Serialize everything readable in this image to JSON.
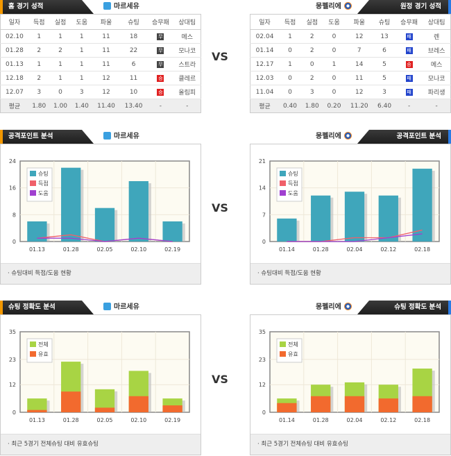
{
  "vs_label": "VS",
  "home": {
    "title": "홈 경기 성적",
    "team": "마르세유",
    "columns": [
      "일자",
      "득점",
      "실점",
      "도움",
      "파울",
      "슈팅",
      "승무패",
      "상대팀"
    ],
    "rows": [
      [
        "02.10",
        "1",
        "1",
        "1",
        "11",
        "18",
        "무",
        "메스"
      ],
      [
        "01.28",
        "2",
        "2",
        "1",
        "11",
        "22",
        "무",
        "모나코"
      ],
      [
        "01.13",
        "1",
        "1",
        "1",
        "11",
        "6",
        "무",
        "스트라"
      ],
      [
        "12.18",
        "2",
        "1",
        "1",
        "12",
        "11",
        "승",
        "클레르"
      ],
      [
        "12.07",
        "3",
        "0",
        "3",
        "12",
        "10",
        "승",
        "올림피"
      ]
    ],
    "avg": [
      "평균",
      "1.80",
      "1.00",
      "1.40",
      "11.40",
      "13.40",
      "-",
      "-"
    ]
  },
  "away": {
    "title": "원정 경기 성적",
    "team": "몽펠리에",
    "columns": [
      "일자",
      "득점",
      "실점",
      "도움",
      "파울",
      "슈팅",
      "승무패",
      "상대팀"
    ],
    "rows": [
      [
        "02.04",
        "1",
        "2",
        "0",
        "12",
        "13",
        "패",
        "렌"
      ],
      [
        "01.14",
        "0",
        "2",
        "0",
        "7",
        "6",
        "패",
        "브레스"
      ],
      [
        "12.17",
        "1",
        "0",
        "1",
        "14",
        "5",
        "승",
        "메스"
      ],
      [
        "12.03",
        "0",
        "2",
        "0",
        "11",
        "5",
        "패",
        "모나코"
      ],
      [
        "11.04",
        "0",
        "3",
        "0",
        "12",
        "3",
        "패",
        "파리생"
      ]
    ],
    "avg": [
      "평균",
      "0.40",
      "1.80",
      "0.20",
      "11.20",
      "6.40",
      "-",
      "-"
    ]
  },
  "result_colors": {
    "승": "#e02020",
    "무": "#444444",
    "패": "#2244cc"
  },
  "sections": [
    {
      "title": "공격포인트 분석",
      "home_team": "마르세유",
      "away_team": "몽펠리에",
      "footer": "슈팅대비 득점/도움 현황"
    },
    {
      "title": "슈팅 정확도 분석",
      "home_team": "마르세유",
      "away_team": "몽펠리에",
      "footer": "최근 5경기 전체슈팅 대비 유효슈팅"
    }
  ],
  "chart_data": [
    {
      "type": "bar",
      "team": "마르세유",
      "categories": [
        "01.13",
        "01.28",
        "02.05",
        "02.10",
        "02.19"
      ],
      "ylim": [
        0,
        24
      ],
      "yticks": [
        0,
        8,
        16,
        24
      ],
      "legend": "top-left",
      "series": [
        {
          "name": "슈팅",
          "kind": "bar",
          "color": "#3fa6bb",
          "values": [
            6,
            22,
            10,
            18,
            6
          ]
        },
        {
          "name": "득점",
          "kind": "line",
          "color": "#f0606a",
          "values": [
            1,
            2,
            0,
            1,
            0
          ]
        },
        {
          "name": "도움",
          "kind": "line",
          "color": "#a040d0",
          "values": [
            1,
            1,
            0,
            1,
            0
          ]
        }
      ]
    },
    {
      "type": "bar",
      "team": "몽펠리에",
      "categories": [
        "01.14",
        "01.28",
        "02.04",
        "02.12",
        "02.18"
      ],
      "ylim": [
        0,
        21
      ],
      "yticks": [
        0,
        7,
        14,
        21
      ],
      "legend": "top-left",
      "series": [
        {
          "name": "슈팅",
          "kind": "bar",
          "color": "#3fa6bb",
          "values": [
            6,
            12,
            13,
            12,
            19
          ]
        },
        {
          "name": "득점",
          "kind": "line",
          "color": "#f0606a",
          "values": [
            0,
            0,
            1,
            1,
            3
          ]
        },
        {
          "name": "도움",
          "kind": "line",
          "color": "#a040d0",
          "values": [
            0,
            0,
            0,
            1,
            2
          ]
        }
      ]
    },
    {
      "type": "bar",
      "team": "마르세유",
      "categories": [
        "01.13",
        "01.28",
        "02.05",
        "02.10",
        "02.19"
      ],
      "ylim": [
        0,
        35
      ],
      "yticks": [
        0,
        12,
        23,
        35
      ],
      "legend": "top-left",
      "series": [
        {
          "name": "전체",
          "kind": "bar",
          "color": "#a8d444",
          "values": [
            6,
            22,
            10,
            18,
            6
          ]
        },
        {
          "name": "유효",
          "kind": "bar",
          "color": "#f26a2e",
          "values": [
            1,
            9,
            2,
            7,
            3
          ]
        }
      ]
    },
    {
      "type": "bar",
      "team": "몽펠리에",
      "categories": [
        "01.14",
        "01.28",
        "02.04",
        "02.12",
        "02.18"
      ],
      "ylim": [
        0,
        35
      ],
      "yticks": [
        0,
        12,
        23,
        35
      ],
      "legend": "top-left",
      "series": [
        {
          "name": "전체",
          "kind": "bar",
          "color": "#a8d444",
          "values": [
            6,
            12,
            13,
            12,
            19
          ]
        },
        {
          "name": "유효",
          "kind": "bar",
          "color": "#f26a2e",
          "values": [
            4,
            7,
            7,
            6,
            7
          ]
        }
      ]
    }
  ]
}
